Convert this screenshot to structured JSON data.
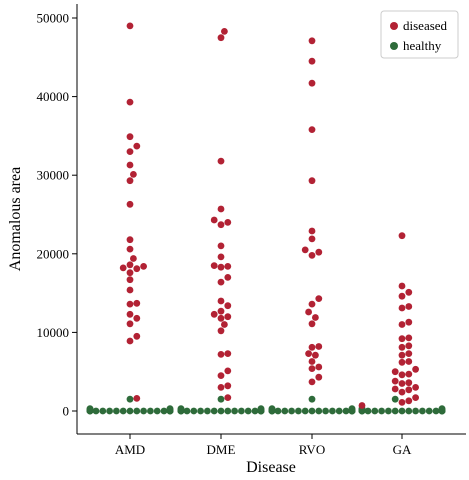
{
  "chart_data": {
    "type": "scatter",
    "subtype": "swarm",
    "title": "",
    "xlabel": "Disease",
    "ylabel": "Anomalous area",
    "categories": [
      "AMD",
      "DME",
      "RVO",
      "GA"
    ],
    "ylim": [
      -3000,
      51500
    ],
    "yticks": [
      0,
      10000,
      20000,
      30000,
      40000,
      50000
    ],
    "ytick_labels": [
      "0",
      "10000",
      "20000",
      "30000",
      "40000",
      "50000"
    ],
    "legend_position": "top-right",
    "grid": false,
    "colors": {
      "diseased": "#b22234",
      "healthy": "#2e6b3a",
      "axis": "#000000",
      "legend_border": "#cccccc"
    },
    "series": [
      {
        "name": "diseased",
        "values": {
          "AMD": [
            49000,
            39300,
            34900,
            33700,
            33000,
            31300,
            30100,
            29300,
            26300,
            21800,
            20600,
            19400,
            18600,
            18400,
            18200,
            18100,
            17600,
            16700,
            15400,
            13700,
            13600,
            12300,
            11800,
            11100,
            9500,
            8900,
            1600
          ],
          "DME": [
            48300,
            47500,
            31800,
            25700,
            24300,
            24000,
            23700,
            21000,
            19600,
            18500,
            18400,
            18300,
            17000,
            16400,
            14000,
            13400,
            12700,
            12300,
            12000,
            11800,
            11000,
            10200,
            7300,
            7200,
            5100,
            4500,
            3200,
            3000,
            1700
          ],
          "RVO": [
            47100,
            44500,
            41700,
            35800,
            29300,
            22900,
            21900,
            20500,
            20200,
            19800,
            14300,
            13600,
            12600,
            11900,
            11100,
            8200,
            8100,
            7300,
            7100,
            6300,
            5600,
            5400,
            4300,
            3700
          ],
          "GA": [
            22300,
            15900,
            15100,
            14600,
            13300,
            13100,
            11300,
            11000,
            9300,
            9200,
            8300,
            8100,
            7300,
            7100,
            6300,
            6200,
            5300,
            5000,
            4700,
            4600,
            3800,
            3600,
            3500,
            3000,
            2800,
            2700,
            2400,
            1700,
            1300,
            1100,
            700
          ]
        }
      },
      {
        "name": "healthy",
        "values": {
          "AMD": [
            1500,
            300,
            300,
            200,
            200,
            100,
            100,
            50,
            50,
            0,
            0,
            0,
            0,
            0,
            0,
            0,
            0,
            0,
            0,
            0,
            0,
            0,
            0,
            0,
            0,
            0,
            0
          ],
          "DME": [
            1500,
            300,
            300,
            200,
            200,
            100,
            100,
            50,
            50,
            0,
            0,
            0,
            0,
            0,
            0,
            0,
            0,
            0,
            0,
            0,
            0,
            0,
            0,
            0,
            0,
            0,
            0
          ],
          "RVO": [
            1500,
            300,
            300,
            200,
            200,
            100,
            100,
            50,
            50,
            0,
            0,
            0,
            0,
            0,
            0,
            0,
            0,
            0,
            0,
            0,
            0,
            0,
            0,
            0,
            0,
            0,
            0
          ],
          "GA": [
            1500,
            300,
            300,
            200,
            200,
            100,
            100,
            50,
            50,
            0,
            0,
            0,
            0,
            0,
            0,
            0,
            0,
            0,
            0,
            0,
            0,
            0,
            0,
            0,
            0,
            0,
            0
          ]
        }
      }
    ]
  }
}
